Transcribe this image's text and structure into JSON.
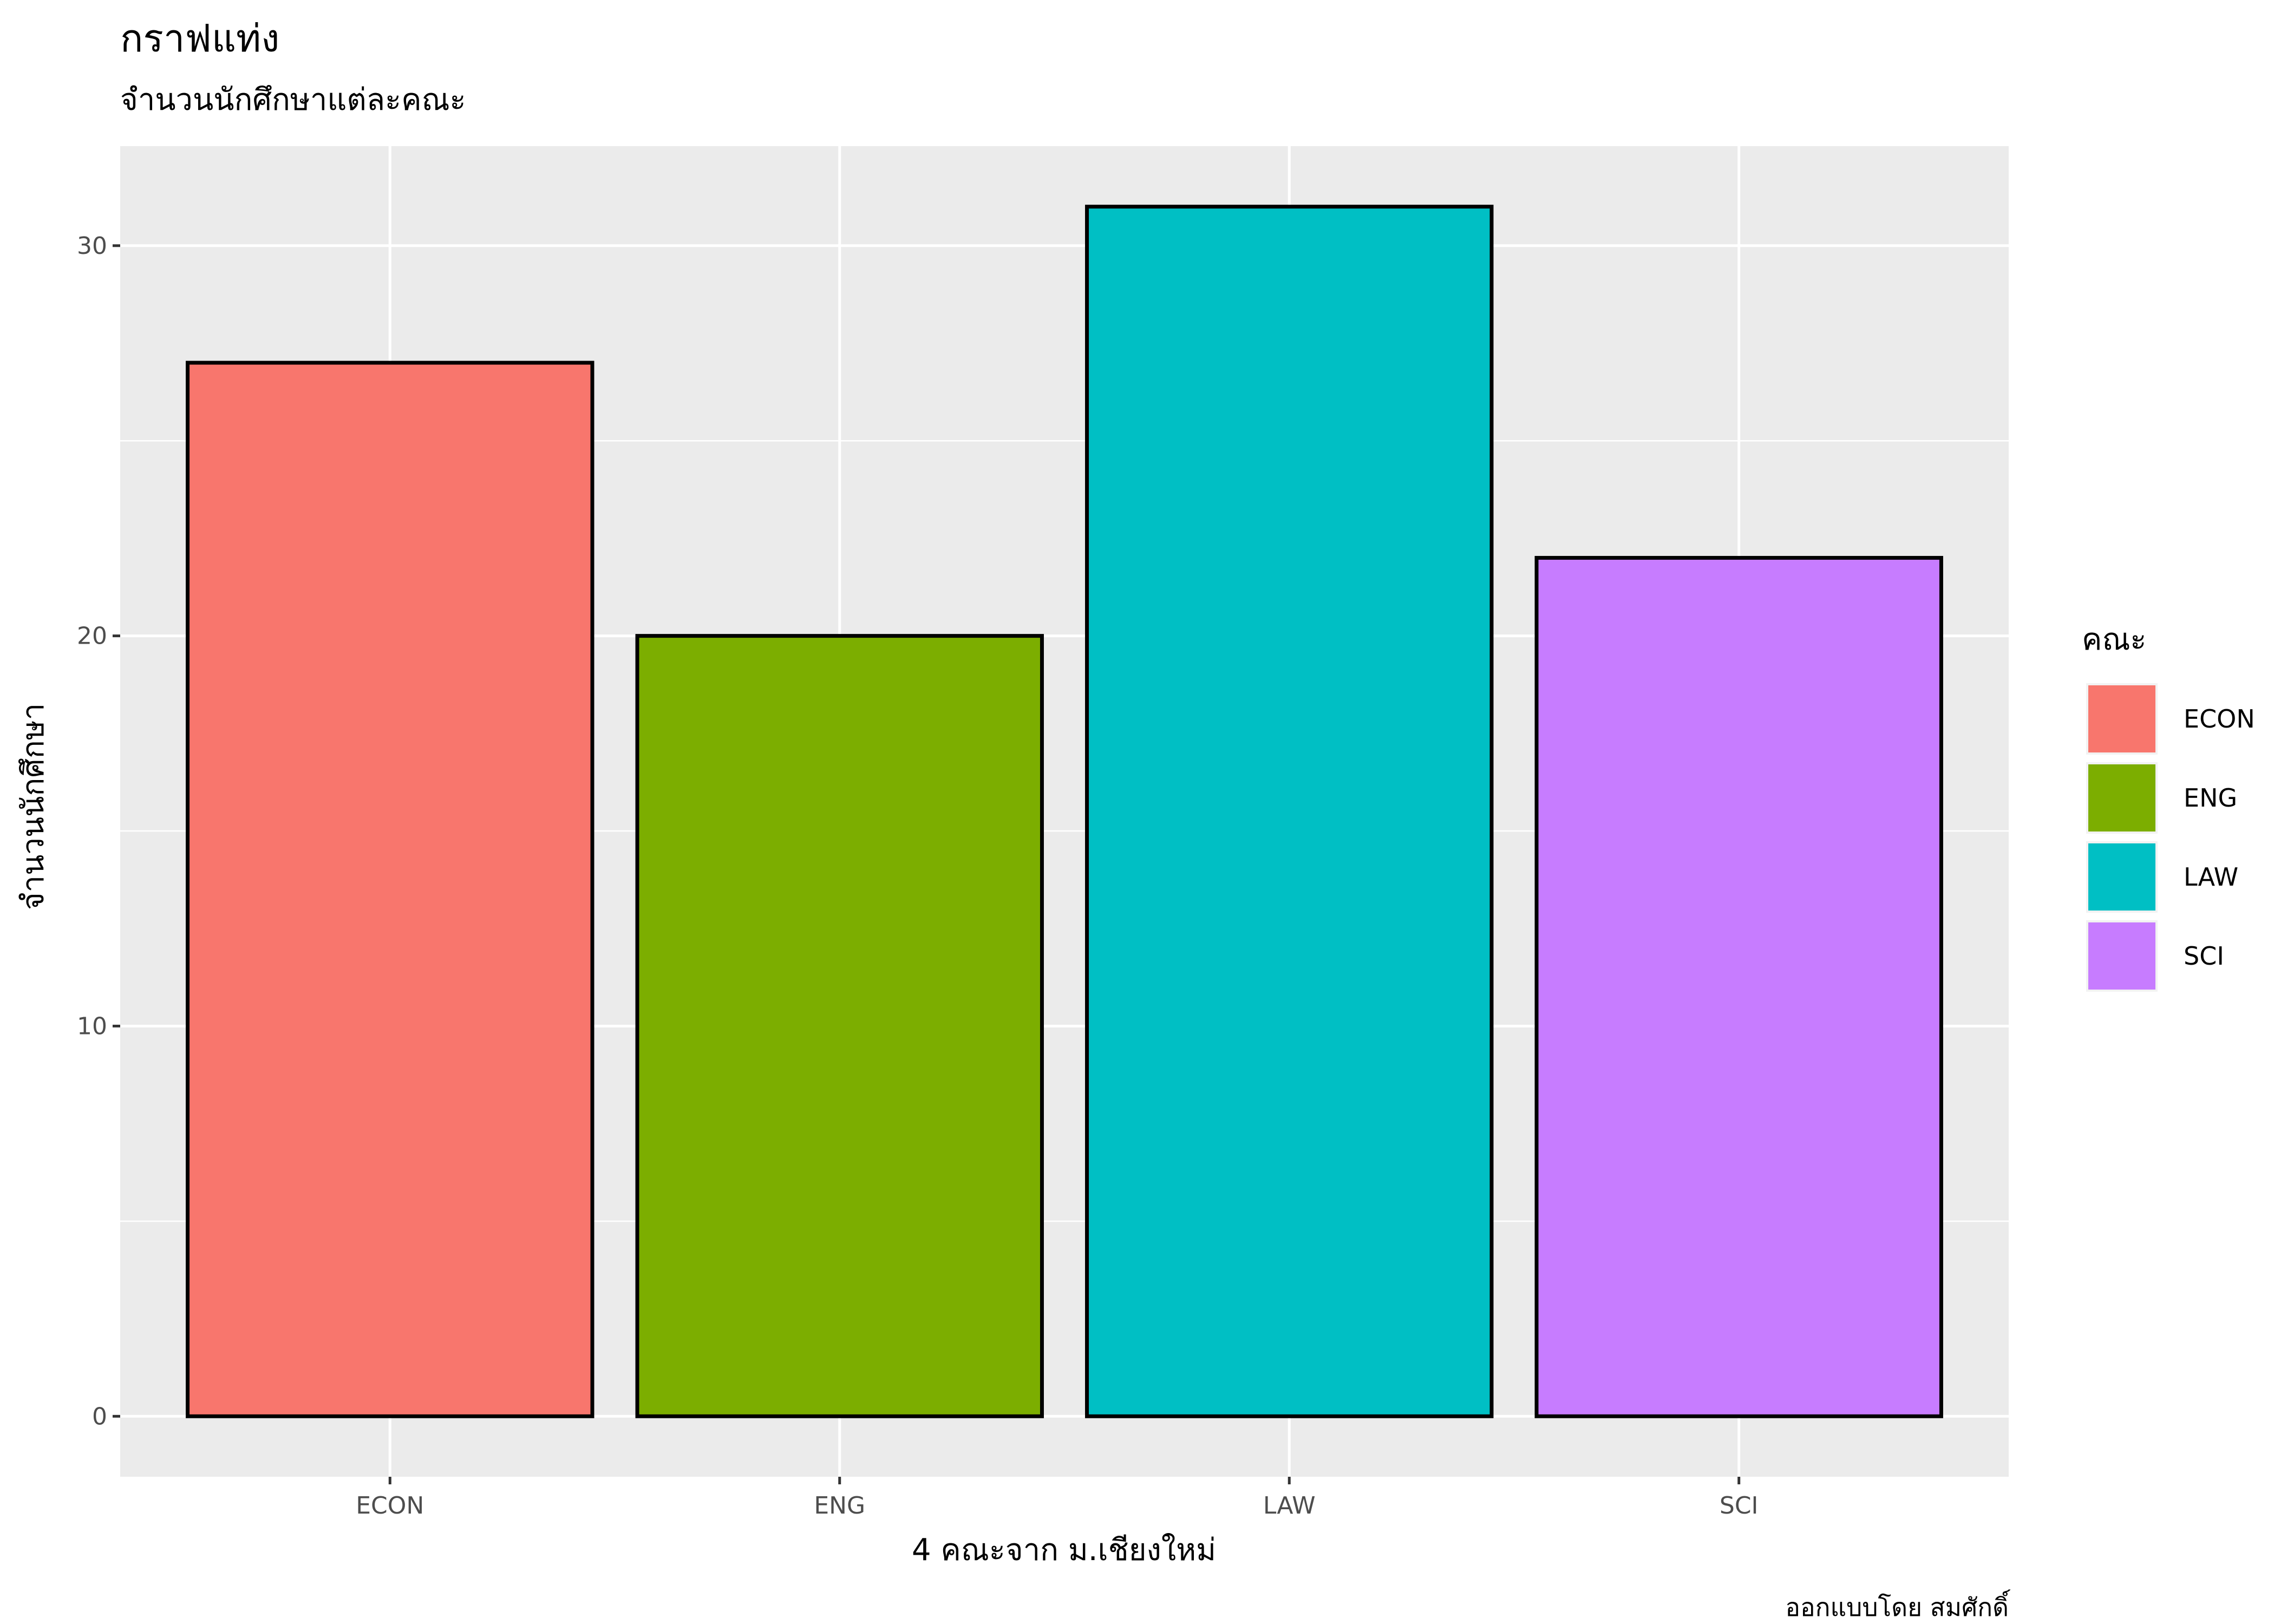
{
  "chart_data": {
    "type": "bar",
    "title": "กราฟแท่ง",
    "subtitle": "จำนวนนักศึกษาแต่ละคณะ",
    "xlabel": "4 คณะจาก ม.เชียงใหม่",
    "ylabel": "จำนวนนักศึกษา",
    "caption": "ออกแบบโดย สมศักดิ์",
    "categories": [
      "ECON",
      "ENG",
      "LAW",
      "SCI"
    ],
    "values": [
      27,
      20,
      31,
      22
    ],
    "colors": [
      "#F8766D",
      "#7CAE00",
      "#00BFC4",
      "#C77CFF"
    ],
    "ylim": [
      -1.55,
      32.55
    ],
    "yticks": [
      0,
      10,
      20,
      30
    ],
    "grid": true,
    "legend": {
      "title": "คณะ",
      "position": "right",
      "items": [
        "ECON",
        "ENG",
        "LAW",
        "SCI"
      ]
    }
  }
}
